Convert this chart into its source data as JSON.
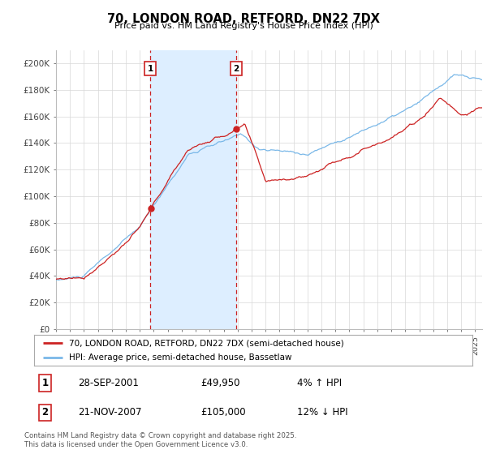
{
  "title": "70, LONDON ROAD, RETFORD, DN22 7DX",
  "subtitle": "Price paid vs. HM Land Registry's House Price Index (HPI)",
  "ylabel_ticks": [
    "£0",
    "£20K",
    "£40K",
    "£60K",
    "£80K",
    "£100K",
    "£120K",
    "£140K",
    "£160K",
    "£180K",
    "£200K"
  ],
  "ytick_vals": [
    0,
    20000,
    40000,
    60000,
    80000,
    100000,
    120000,
    140000,
    160000,
    180000,
    200000
  ],
  "ylim": [
    0,
    210000
  ],
  "xlim_start": 1995.0,
  "xlim_end": 2025.5,
  "hpi_color": "#7ab8e8",
  "hpi_fill_color": "#ddeeff",
  "price_color": "#cc2222",
  "marker1_date": 2001.74,
  "marker1_price": 49950,
  "marker1_label": "1",
  "marker1_text": "28-SEP-2001",
  "marker1_price_text": "£49,950",
  "marker1_pct": "4% ↑ HPI",
  "marker2_date": 2007.9,
  "marker2_price": 105000,
  "marker2_label": "2",
  "marker2_text": "21-NOV-2007",
  "marker2_price_text": "£105,000",
  "marker2_pct": "12% ↓ HPI",
  "legend_line1": "70, LONDON ROAD, RETFORD, DN22 7DX (semi-detached house)",
  "legend_line2": "HPI: Average price, semi-detached house, Bassetlaw",
  "footer": "Contains HM Land Registry data © Crown copyright and database right 2025.\nThis data is licensed under the Open Government Licence v3.0.",
  "background_color": "#ffffff",
  "grid_color": "#d8d8d8"
}
